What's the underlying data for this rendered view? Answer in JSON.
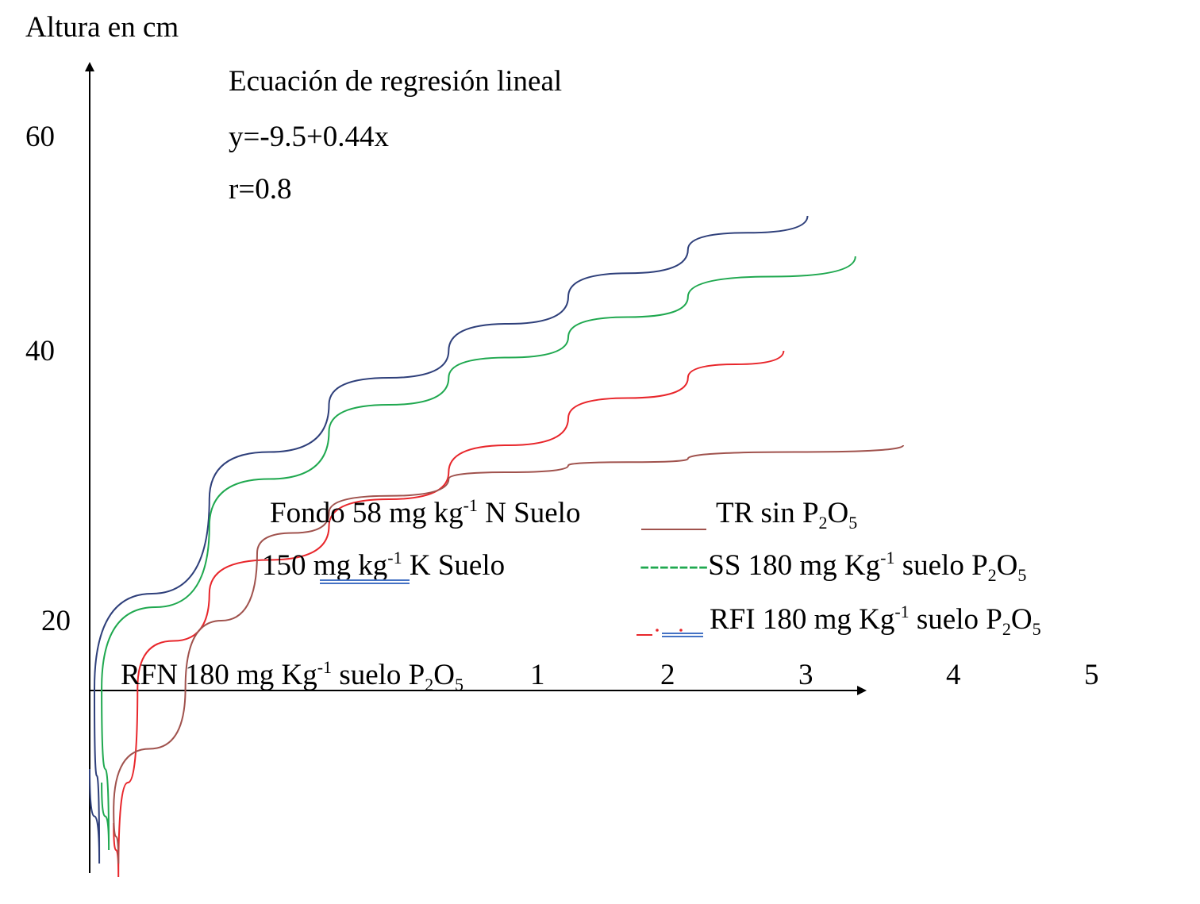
{
  "chart_data": {
    "type": "line",
    "ylabel": "Altura en cm",
    "annotations": {
      "title": "Ecuación de regresión lineal",
      "equation": "y=-9.5+0.44x",
      "r": "r=0.8"
    },
    "y_ticks": [
      "60",
      "40",
      "20"
    ],
    "x_ticks": [
      "1",
      "2",
      "3",
      "4",
      "5"
    ],
    "notes": {
      "line1_pre": "Fondo 58 mg kg",
      "line1_sup": "-1",
      "line1_post": " N Suelo",
      "line2_pre": "150 mg  kg",
      "line2_sup": "-1",
      "line2_post": " K Suelo"
    },
    "legend": {
      "tr": {
        "pre": "TR sin P",
        "s1": "2",
        "mid": "O",
        "s2": "5",
        "color": "#a0524d"
      },
      "ss": {
        "dash": "-------",
        "pre": "SS 180 mg Kg",
        "sup": "-1",
        "mid": " suelo P",
        "s1": "2",
        "mid2": "O",
        "s2": "5",
        "color": "#1fa84f"
      },
      "rfi": {
        "pre": "RFI 180 mg Kg",
        "sup": "-1",
        "mid": " suelo P",
        "s1": "2",
        "mid2": "O",
        "s2": "5",
        "color": "#e8262b"
      },
      "rfn": {
        "pre": "RFN 180 mg Kg",
        "sup": "-1",
        "mid": " suelo P",
        "s1": "2",
        "mid2": "O",
        "s2": "5",
        "color": "#2e3f7a"
      }
    },
    "series": [
      {
        "name": "RFN 180 mg Kg-1 suelo P2O5",
        "color": "#2e3f7a",
        "x": [
          0.02,
          0.5,
          1,
          1.5,
          2,
          2.5,
          3.0
        ],
        "y": [
          15,
          29,
          36,
          40,
          44,
          47.5,
          50
        ]
      },
      {
        "name": "SS 180 mg Kg-1 suelo P2O5",
        "color": "#1fa84f",
        "x": [
          0.05,
          0.5,
          1,
          1.5,
          2,
          2.5,
          3.2
        ],
        "y": [
          15,
          27,
          34,
          38,
          41,
          44,
          47
        ]
      },
      {
        "name": "RFI 180 mg Kg-1 suelo P2O5",
        "color": "#e8262b",
        "x": [
          0.2,
          0.5,
          1,
          1.5,
          2,
          2.5,
          2.9
        ],
        "y": [
          15,
          22,
          27,
          31,
          35,
          38,
          40
        ]
      },
      {
        "name": "TR sin P2O5",
        "color": "#a0524d",
        "x": [
          0.4,
          0.7,
          1,
          1.5,
          2,
          2.5,
          3.4
        ],
        "y": [
          15,
          25,
          28,
          30.5,
          31.5,
          32,
          33
        ]
      }
    ]
  }
}
